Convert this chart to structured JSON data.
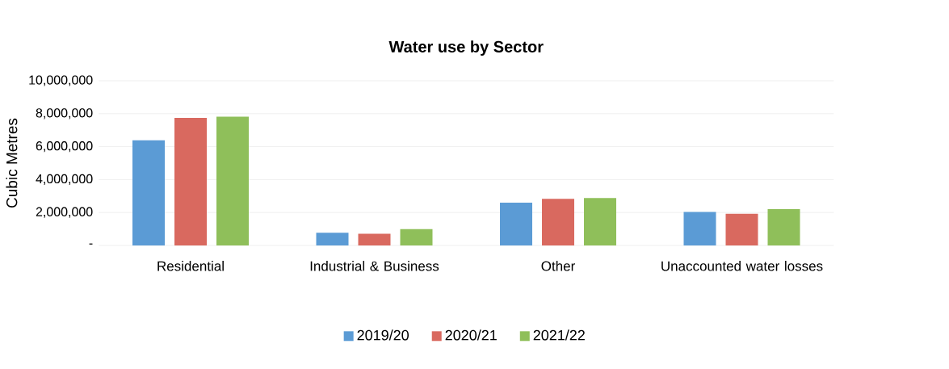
{
  "chart_data": {
    "type": "bar",
    "title": "Water use by Sector",
    "ylabel": "Cubic Metres",
    "categories": [
      "Residential",
      "Industrial & Business",
      "Other",
      "Unaccounted water losses"
    ],
    "series": [
      {
        "name": "2019/20",
        "color": "#5b9bd5",
        "values": [
          6390000,
          770000,
          2600000,
          2030000
        ]
      },
      {
        "name": "2020/21",
        "color": "#d9695f",
        "values": [
          7740000,
          710000,
          2830000,
          1920000
        ]
      },
      {
        "name": "2021/22",
        "color": "#8fbf5a",
        "values": [
          7820000,
          990000,
          2880000,
          2210000
        ]
      }
    ],
    "ylim": [
      0,
      10000000
    ],
    "yticks": [
      {
        "value": 0,
        "label": "-"
      },
      {
        "value": 2000000,
        "label": "2,000,000"
      },
      {
        "value": 4000000,
        "label": "4,000,000"
      },
      {
        "value": 6000000,
        "label": "6,000,000"
      },
      {
        "value": 8000000,
        "label": "8,000,000"
      },
      {
        "value": 10000000,
        "label": "10,000,000"
      }
    ],
    "grid": "y",
    "legend": "bottom"
  }
}
